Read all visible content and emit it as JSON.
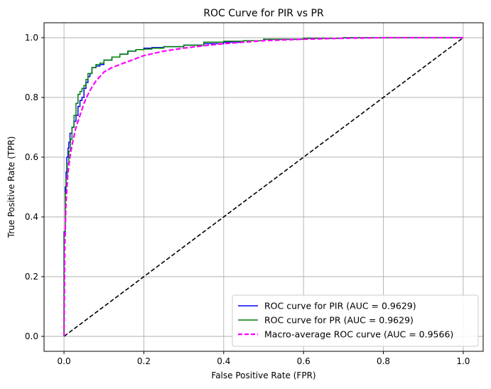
{
  "chart_data": {
    "type": "line",
    "title": "ROC Curve for PIR vs PR",
    "xlabel": "False Positive Rate (FPR)",
    "ylabel": "True Positive Rate (TPR)",
    "xlim": [
      -0.05,
      1.05
    ],
    "ylim": [
      -0.05,
      1.05
    ],
    "xticks": [
      0.0,
      0.2,
      0.4,
      0.6,
      0.8,
      1.0
    ],
    "yticks": [
      0.0,
      0.2,
      0.4,
      0.6,
      0.8,
      1.0
    ],
    "xtick_labels": [
      "0.0",
      "0.2",
      "0.4",
      "0.6",
      "0.8",
      "1.0"
    ],
    "ytick_labels": [
      "0.0",
      "0.2",
      "0.4",
      "0.6",
      "0.8",
      "1.0"
    ],
    "grid": true,
    "legend_position": "bottom-right",
    "series": [
      {
        "name": "ROC curve for PIR (AUC = 0.9629)",
        "color": "#0000ff",
        "style": "solid",
        "step": true,
        "x": [
          0.0,
          0.0,
          0.003,
          0.005,
          0.007,
          0.01,
          0.012,
          0.015,
          0.02,
          0.025,
          0.03,
          0.035,
          0.04,
          0.045,
          0.05,
          0.055,
          0.06,
          0.065,
          0.07,
          0.08,
          0.09,
          0.1,
          0.12,
          0.14,
          0.16,
          0.18,
          0.2,
          0.22,
          0.25,
          0.3,
          0.35,
          0.4,
          0.45,
          0.5,
          0.6,
          0.7,
          0.8,
          0.9,
          1.0
        ],
        "y": [
          0.0,
          0.25,
          0.35,
          0.5,
          0.55,
          0.6,
          0.63,
          0.65,
          0.68,
          0.7,
          0.72,
          0.74,
          0.77,
          0.79,
          0.8,
          0.83,
          0.85,
          0.87,
          0.88,
          0.9,
          0.905,
          0.91,
          0.925,
          0.935,
          0.945,
          0.955,
          0.96,
          0.965,
          0.967,
          0.97,
          0.975,
          0.98,
          0.985,
          0.99,
          0.995,
          0.998,
          1.0,
          1.0,
          1.0
        ]
      },
      {
        "name": "ROC curve for PR (AUC = 0.9629)",
        "color": "#008000",
        "style": "solid",
        "step": true,
        "x": [
          0.0,
          0.0,
          0.003,
          0.005,
          0.008,
          0.012,
          0.016,
          0.02,
          0.025,
          0.03,
          0.035,
          0.04,
          0.045,
          0.05,
          0.055,
          0.06,
          0.07,
          0.08,
          0.09,
          0.1,
          0.12,
          0.14,
          0.16,
          0.18,
          0.2,
          0.22,
          0.25,
          0.3,
          0.35,
          0.4,
          0.45,
          0.5,
          0.6,
          0.7,
          0.8,
          0.9,
          1.0
        ],
        "y": [
          0.0,
          0.22,
          0.34,
          0.48,
          0.53,
          0.58,
          0.62,
          0.66,
          0.7,
          0.74,
          0.78,
          0.81,
          0.82,
          0.83,
          0.84,
          0.86,
          0.88,
          0.9,
          0.91,
          0.915,
          0.925,
          0.935,
          0.945,
          0.955,
          0.96,
          0.962,
          0.965,
          0.97,
          0.975,
          0.985,
          0.988,
          0.99,
          0.995,
          0.998,
          1.0,
          1.0,
          1.0
        ]
      },
      {
        "name": "Macro-average ROC curve (AUC = 0.9566)",
        "color": "#ff00ff",
        "style": "dashed",
        "step": false,
        "x": [
          0.0,
          0.002,
          0.005,
          0.01,
          0.015,
          0.02,
          0.025,
          0.03,
          0.04,
          0.05,
          0.06,
          0.07,
          0.08,
          0.09,
          0.1,
          0.12,
          0.14,
          0.16,
          0.18,
          0.2,
          0.25,
          0.3,
          0.35,
          0.4,
          0.45,
          0.5,
          0.6,
          0.7,
          0.8,
          0.9,
          1.0
        ],
        "y": [
          0.0,
          0.3,
          0.45,
          0.55,
          0.6,
          0.64,
          0.67,
          0.7,
          0.74,
          0.78,
          0.81,
          0.835,
          0.855,
          0.87,
          0.885,
          0.9,
          0.91,
          0.92,
          0.93,
          0.94,
          0.955,
          0.965,
          0.973,
          0.98,
          0.985,
          0.99,
          0.995,
          0.998,
          1.0,
          1.0,
          1.0
        ]
      }
    ],
    "reference_line": {
      "x": [
        0.0,
        1.0
      ],
      "y": [
        0.0,
        1.0
      ],
      "color": "#000000",
      "style": "dashed"
    }
  }
}
